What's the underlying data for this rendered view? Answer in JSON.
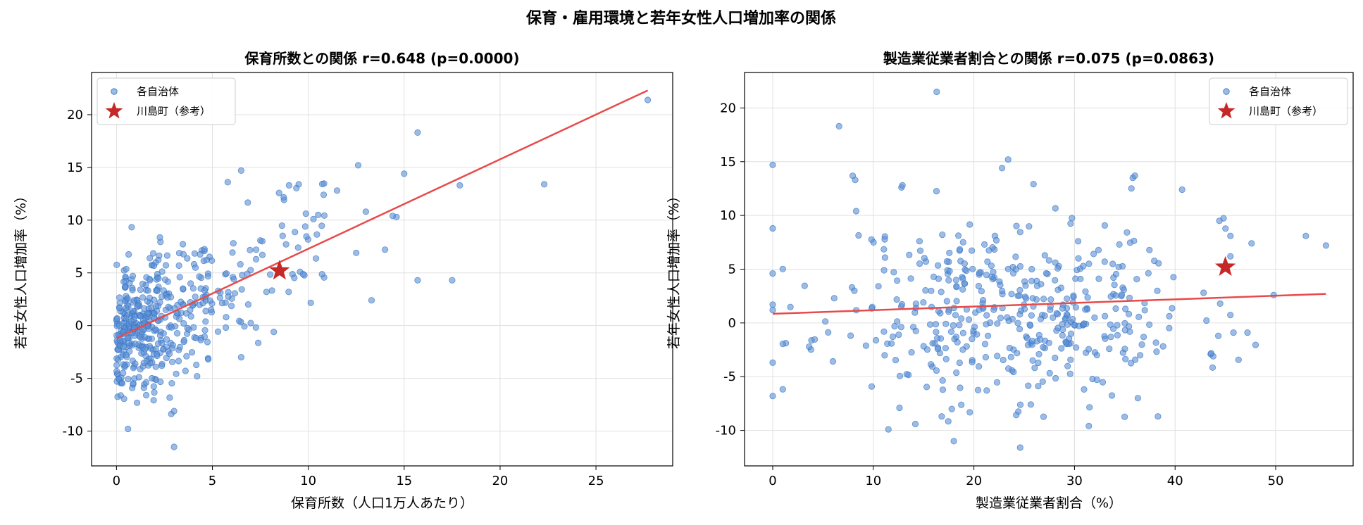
{
  "suptitle": "保育・雇用環境と若年女性人口増加率の関係",
  "colors": {
    "points": "#5b8fd4",
    "point_edge": "#2d6fc4",
    "trend": "#e84a4a",
    "star": "#c62828",
    "grid": "#e0e0e0"
  },
  "chart_data": [
    {
      "type": "scatter",
      "title": "保育所数との関係 r=0.648 (p=0.0000)",
      "xlabel": "保育所数（人口1万人あたり）",
      "ylabel": "若年女性人口増加率（%）",
      "xlim": [
        -1.3,
        29
      ],
      "ylim": [
        -13.3,
        24
      ],
      "xticks": [
        0,
        5,
        10,
        15,
        20,
        25
      ],
      "yticks": [
        -10,
        -5,
        0,
        5,
        10,
        15,
        20
      ],
      "grid": true,
      "legend_position": "top-left",
      "series": [
        {
          "name": "各自治体",
          "marker": "circle",
          "seed": 7,
          "n": 470,
          "generator": "childcare"
        },
        {
          "name": "川島町（参考）",
          "marker": "star",
          "points": [
            [
              8.5,
              5.2
            ]
          ]
        }
      ],
      "highlight_points": [
        [
          27.7,
          21.4
        ],
        [
          22.3,
          13.4
        ],
        [
          17.9,
          13.3
        ],
        [
          15.7,
          18.3
        ],
        [
          15.0,
          14.4
        ],
        [
          15.7,
          4.3
        ],
        [
          17.5,
          4.3
        ],
        [
          12.6,
          15.2
        ],
        [
          13.3,
          2.4
        ],
        [
          14.4,
          10.4
        ],
        [
          14.0,
          7.2
        ],
        [
          12.5,
          6.9
        ],
        [
          9.0,
          13.3
        ],
        [
          9.5,
          13.4
        ],
        [
          6.5,
          14.7
        ],
        [
          5.8,
          13.6
        ],
        [
          3.0,
          -11.5
        ],
        [
          0.6,
          -9.8
        ],
        [
          3.0,
          -8.1
        ],
        [
          4.2,
          -4.8
        ],
        [
          6.5,
          -3.0
        ],
        [
          10.8,
          12.4
        ],
        [
          11.5,
          12.8
        ],
        [
          13.0,
          10.8
        ],
        [
          14.6,
          10.3
        ]
      ],
      "trend": {
        "x": [
          0,
          27.7
        ],
        "y": [
          -1.2,
          22.3
        ]
      }
    },
    {
      "type": "scatter",
      "title": "製造業従業者割合との関係 r=0.075 (p=0.0863)",
      "xlabel": "製造業従業者割合（%）",
      "ylabel": "若年女性人口増加率（%）",
      "xlim": [
        -2.8,
        57.7
      ],
      "ylim": [
        -13.3,
        23.3
      ],
      "xticks": [
        0,
        10,
        20,
        30,
        40,
        50
      ],
      "yticks": [
        -10,
        -5,
        0,
        5,
        10,
        15,
        20
      ],
      "grid": true,
      "legend_position": "top-right",
      "series": [
        {
          "name": "各自治体",
          "marker": "circle",
          "seed": 11,
          "n": 440,
          "generator": "manufacturing"
        },
        {
          "name": "川島町（参考）",
          "marker": "star",
          "points": [
            [
              45.0,
              5.2
            ]
          ]
        }
      ],
      "highlight_points": [
        [
          16.3,
          21.5
        ],
        [
          6.6,
          18.3
        ],
        [
          0,
          14.7
        ],
        [
          0,
          8.8
        ],
        [
          0,
          4.6
        ],
        [
          0,
          1.7
        ],
        [
          0,
          1.2
        ],
        [
          0,
          -3.7
        ],
        [
          0,
          -6.8
        ],
        [
          23.4,
          15.2
        ],
        [
          22.8,
          14.4
        ],
        [
          35.8,
          13.5
        ],
        [
          36.0,
          13.7
        ],
        [
          40.7,
          12.4
        ],
        [
          53.0,
          8.1
        ],
        [
          55.0,
          7.2
        ],
        [
          49.8,
          2.6
        ],
        [
          47.2,
          -0.9
        ],
        [
          45.8,
          -0.9
        ],
        [
          44.3,
          -1.2
        ],
        [
          38.3,
          -8.7
        ],
        [
          36.3,
          -7.0
        ],
        [
          24.6,
          -11.6
        ],
        [
          11.5,
          -9.9
        ],
        [
          16.8,
          -8.7
        ],
        [
          17.8,
          -8.0
        ],
        [
          44.4,
          9.5
        ],
        [
          45.5,
          8.1
        ],
        [
          47.6,
          7.4
        ],
        [
          45.5,
          6.2
        ],
        [
          8.2,
          13.3
        ],
        [
          8.3,
          10.4
        ],
        [
          12.8,
          12.6
        ],
        [
          12.9,
          12.8
        ]
      ],
      "trend": {
        "x": [
          0,
          55
        ],
        "y": [
          0.85,
          2.7
        ]
      }
    }
  ]
}
